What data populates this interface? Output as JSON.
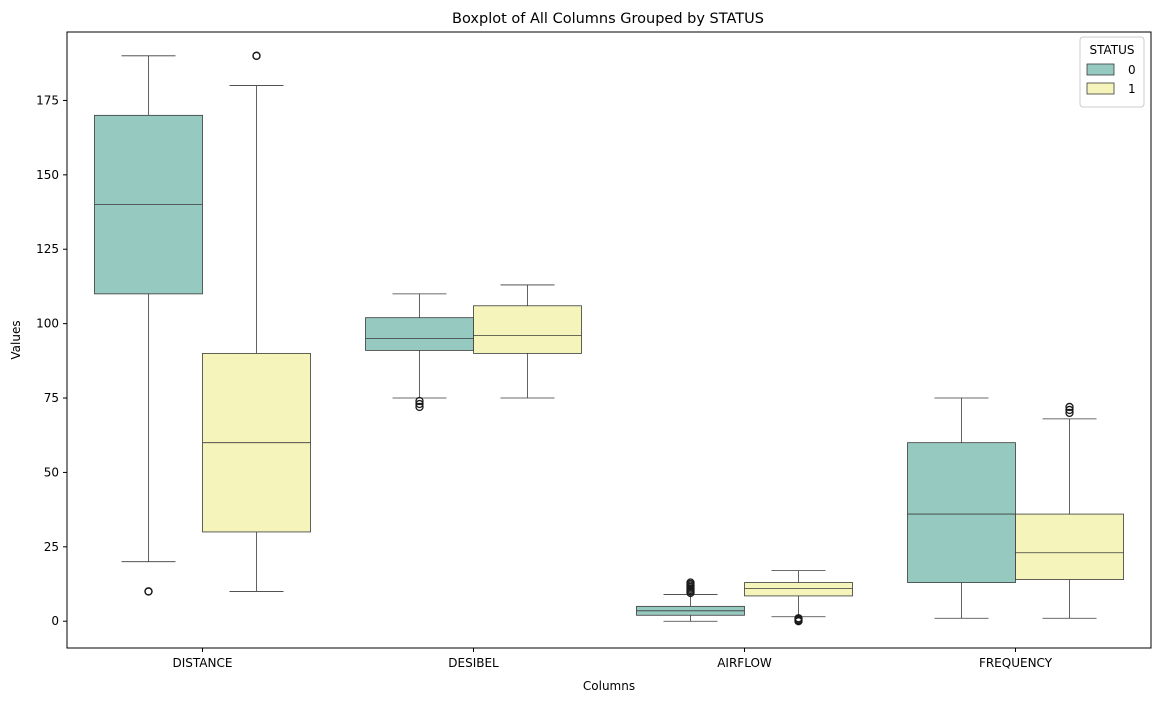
{
  "chart_data": {
    "type": "box",
    "title": "Boxplot of All Columns Grouped by STATUS",
    "xlabel": "Columns",
    "ylabel": "Values",
    "ylim": [
      -9,
      198
    ],
    "yticks": [
      0,
      25,
      50,
      75,
      100,
      125,
      150,
      175
    ],
    "grid": false,
    "categories": [
      "DISTANCE",
      "DESIBEL",
      "AIRFLOW",
      "FREQUENCY"
    ],
    "legend": {
      "title": "STATUS",
      "placement": "top-right"
    },
    "series": [
      {
        "name": "0",
        "color": "#96c9c0",
        "boxes": [
          {
            "whisker_low": 20,
            "q1": 110,
            "median": 140,
            "q3": 170,
            "whisker_high": 190,
            "outliers": [
              10,
              10
            ]
          },
          {
            "whisker_low": 75,
            "q1": 91,
            "median": 95,
            "q3": 102,
            "whisker_high": 110,
            "outliers": [
              72,
              73,
              74
            ]
          },
          {
            "whisker_low": 0,
            "q1": 2,
            "median": 3.5,
            "q3": 5,
            "whisker_high": 9,
            "outliers": [
              9.5,
              10,
              10.5,
              11,
              11.5,
              12,
              12.5,
              13
            ]
          },
          {
            "whisker_low": 1,
            "q1": 13,
            "median": 36,
            "q3": 60,
            "whisker_high": 75,
            "outliers": []
          }
        ]
      },
      {
        "name": "1",
        "color": "#f5f5bb",
        "boxes": [
          {
            "whisker_low": 10,
            "q1": 30,
            "median": 60,
            "q3": 90,
            "whisker_high": 180,
            "outliers": [
              190,
              190
            ]
          },
          {
            "whisker_low": 75,
            "q1": 90,
            "median": 96,
            "q3": 106,
            "whisker_high": 113,
            "outliers": []
          },
          {
            "whisker_low": 1.5,
            "q1": 8.5,
            "median": 11,
            "q3": 13,
            "whisker_high": 17,
            "outliers": [
              0,
              0.3,
              0.6,
              1
            ]
          },
          {
            "whisker_low": 1,
            "q1": 14,
            "median": 23,
            "q3": 36,
            "whisker_high": 68,
            "outliers": [
              70,
              71,
              72
            ]
          }
        ]
      }
    ]
  }
}
